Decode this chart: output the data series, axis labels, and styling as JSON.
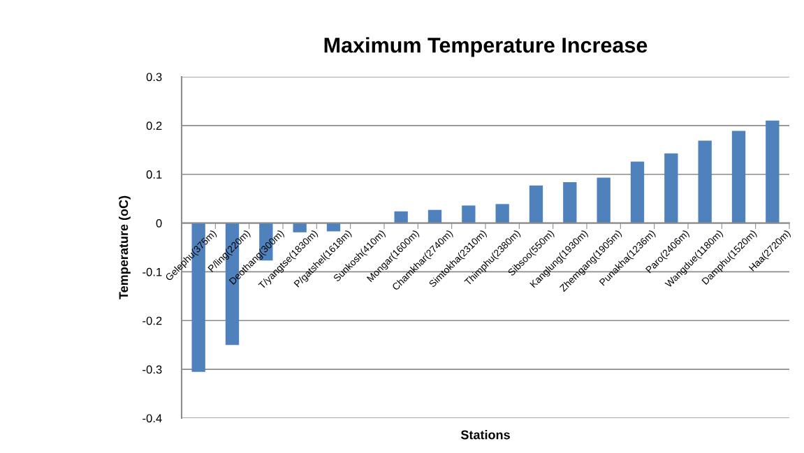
{
  "chart_data": {
    "type": "bar",
    "title": "Maximum Temperature Increase",
    "xlabel": "Stations",
    "ylabel": "Temperature (oC)",
    "categories": [
      "Gelephu(375m)",
      "P/ling(220m)",
      "Deothang(300m)",
      "T/yangtse(1830m)",
      "P/gatshel(1618m)",
      "Sunkosh(410m)",
      "Mongar(1600m)",
      "Chamkhar(2740m)",
      "Simtokha(2310m)",
      "Thimphu(2380m)",
      "Sibsoo(550m)",
      "Kanglung(1930m)",
      "Zhemgang(1905m)",
      "Punakha(1236m)",
      "Paro(2406m)",
      "Wangdue(1180m)",
      "Damphu(1520m)",
      "Haa(2720m)"
    ],
    "values": [
      -0.305,
      -0.25,
      -0.077,
      -0.019,
      -0.017,
      0,
      0.024,
      0.027,
      0.036,
      0.039,
      0.077,
      0.084,
      0.093,
      0.126,
      0.143,
      0.169,
      0.189,
      0.21
    ],
    "color": "#4f81bd",
    "ylim": [
      -0.4,
      0.3
    ],
    "yticks": [
      -0.4,
      -0.3,
      -0.2,
      -0.1,
      0,
      0.1,
      0.2,
      0.3
    ],
    "grid": "y"
  }
}
